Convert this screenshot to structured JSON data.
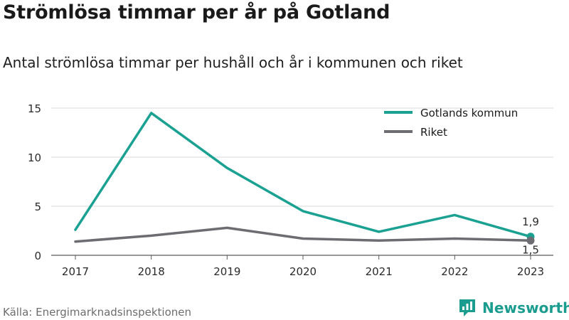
{
  "title": "Strömlösa timmar per år på Gotland",
  "subtitle": "Antal strömlösa timmar per hushåll och år i kommunen och riket",
  "source": "Källa: Energimarknadsinspektionen",
  "brand": {
    "name": "Newsworthy",
    "icon": "newsworthy-logo-icon",
    "color": "#1a9c8f"
  },
  "chart_data": {
    "type": "line",
    "x": [
      "2017",
      "2018",
      "2019",
      "2020",
      "2021",
      "2022",
      "2023"
    ],
    "ylim": [
      0,
      15
    ],
    "yticks": [
      0,
      5,
      10,
      15
    ],
    "grid": true,
    "legend_position": "top-right",
    "series": [
      {
        "name": "Gotlands kommun",
        "color": "#1aa192",
        "values": [
          2.6,
          14.5,
          8.9,
          4.5,
          2.4,
          4.1,
          1.9
        ],
        "end_label": "1,9"
      },
      {
        "name": "Riket",
        "color": "#6d6c72",
        "values": [
          1.4,
          2.0,
          2.8,
          1.7,
          1.5,
          1.7,
          1.5
        ],
        "end_label": "1,5"
      }
    ]
  }
}
